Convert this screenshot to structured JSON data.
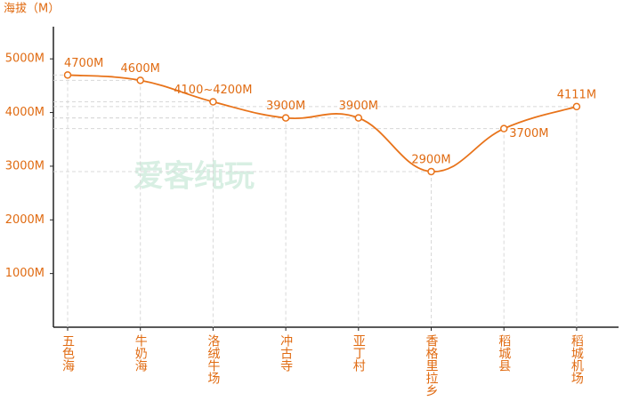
{
  "chart_data": {
    "type": "line",
    "y_label": "海拔（M）",
    "watermark": "爱客纯玩",
    "categories": [
      "五色海",
      "牛奶海",
      "洛绒牛场",
      "冲古寺",
      "亚丁村",
      "香格里拉乡",
      "稻城县",
      "稻城机场"
    ],
    "values": [
      4700,
      4600,
      4200,
      3900,
      3900,
      2900,
      3700,
      4111
    ],
    "value_labels": [
      "4700M",
      "4600M",
      "4100~4200M",
      "3900M",
      "3900M",
      "2900M",
      "3700M",
      "4111M"
    ],
    "color": "#e8731a",
    "ylim": [
      0,
      5600
    ],
    "yticks": [
      {
        "value": 1000,
        "label": "1000M"
      },
      {
        "value": 2000,
        "label": "2000M"
      },
      {
        "value": 3000,
        "label": "3000M"
      },
      {
        "value": 4000,
        "label": "4000M"
      },
      {
        "value": 5000,
        "label": "5000M"
      }
    ]
  }
}
